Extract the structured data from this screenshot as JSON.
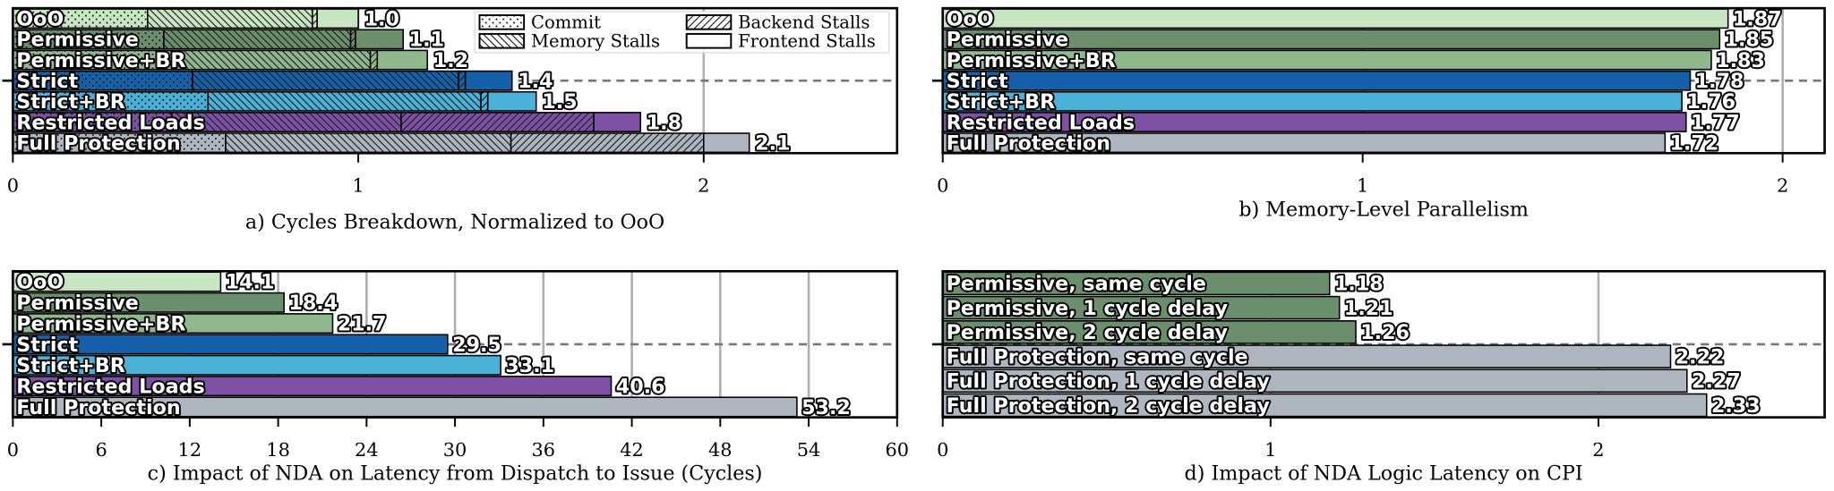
{
  "chart_data": [
    {
      "type": "bar",
      "orientation": "horizontal",
      "xlabel": "a) Cycles Breakdown, Normalized to OoO",
      "categories": [
        "OoO",
        "Permissive",
        "Permissive+BR",
        "Strict",
        "Strict+BR",
        "Restricted Loads",
        "Full Protection"
      ],
      "colors": [
        "#c8e6c2",
        "#6b8f6c",
        "#8fb88f",
        "#1560a8",
        "#4bb1d8",
        "#7d50a6",
        "#aeb7c0"
      ],
      "series": [
        {
          "name": "Commit",
          "hatch": "dots",
          "values": [
            0.39,
            0.437,
            0.46,
            0.52,
            0.565,
            0.46,
            0.616
          ]
        },
        {
          "name": "Memory Stalls",
          "hatch": "backslash",
          "values": [
            0.477,
            0.541,
            0.575,
            0.77,
            0.79,
            0.664,
            0.826
          ]
        },
        {
          "name": "Backend Stalls",
          "hatch": "slash",
          "values": [
            0.014,
            0.014,
            0.02,
            0.02,
            0.02,
            0.558,
            0.558
          ]
        },
        {
          "name": "Frontend Stalls",
          "hatch": "none",
          "values": [
            0.119,
            0.138,
            0.145,
            0.135,
            0.14,
            0.135,
            0.132
          ]
        }
      ],
      "totals": [
        1.0,
        1.13,
        1.2,
        1.445,
        1.515,
        1.817,
        2.132
      ],
      "total_labels": [
        "1.0",
        "1.1",
        "1.2",
        "1.4",
        "1.5",
        "1.8",
        "2.1"
      ],
      "xlim": [
        0,
        2.56
      ],
      "xticks": [
        0,
        1,
        2
      ],
      "grid": true,
      "legend": "upper right",
      "legend_columns": 2
    },
    {
      "type": "bar",
      "orientation": "horizontal",
      "xlabel": "b) Memory-Level Parallelism",
      "categories": [
        "OoO",
        "Permissive",
        "Permissive+BR",
        "Strict",
        "Strict+BR",
        "Restricted Loads",
        "Full Protection"
      ],
      "colors": [
        "#c8e6c2",
        "#6b8f6c",
        "#8fb88f",
        "#1560a8",
        "#4bb1d8",
        "#7d50a6",
        "#aeb7c0"
      ],
      "values": [
        1.87,
        1.85,
        1.83,
        1.78,
        1.76,
        1.77,
        1.72
      ],
      "xlim": [
        0,
        2.1
      ],
      "xticks": [
        0,
        1,
        2
      ],
      "grid": true
    },
    {
      "type": "bar",
      "orientation": "horizontal",
      "xlabel": "c) Impact of NDA on Latency from Dispatch to Issue (Cycles)",
      "categories": [
        "OoO",
        "Permissive",
        "Permissive+BR",
        "Strict",
        "Strict+BR",
        "Restricted Loads",
        "Full Protection"
      ],
      "colors": [
        "#c8e6c2",
        "#6b8f6c",
        "#8fb88f",
        "#1560a8",
        "#4bb1d8",
        "#7d50a6",
        "#aeb7c0"
      ],
      "values": [
        14.1,
        18.4,
        21.7,
        29.5,
        33.1,
        40.6,
        53.2
      ],
      "xlim": [
        0,
        60
      ],
      "xticks": [
        0,
        6,
        12,
        18,
        24,
        30,
        36,
        42,
        48,
        54,
        60
      ],
      "grid": true
    },
    {
      "type": "bar",
      "orientation": "horizontal",
      "xlabel": "d) Impact of NDA Logic Latency on CPI",
      "categories": [
        "Permissive, same cycle",
        "Permissive, 1 cycle delay",
        "Permissive, 2 cycle delay",
        "Full Protection, same cycle",
        "Full Protection, 1 cycle delay",
        "Full Protection, 2 cycle delay"
      ],
      "colors": [
        "#6b8f6c",
        "#6b8f6c",
        "#6b8f6c",
        "#aeb7c0",
        "#aeb7c0",
        "#aeb7c0"
      ],
      "values": [
        1.18,
        1.21,
        1.26,
        2.22,
        2.27,
        2.33
      ],
      "xlim": [
        0,
        2.69
      ],
      "xticks": [
        0,
        1,
        2
      ],
      "grid": true
    }
  ]
}
